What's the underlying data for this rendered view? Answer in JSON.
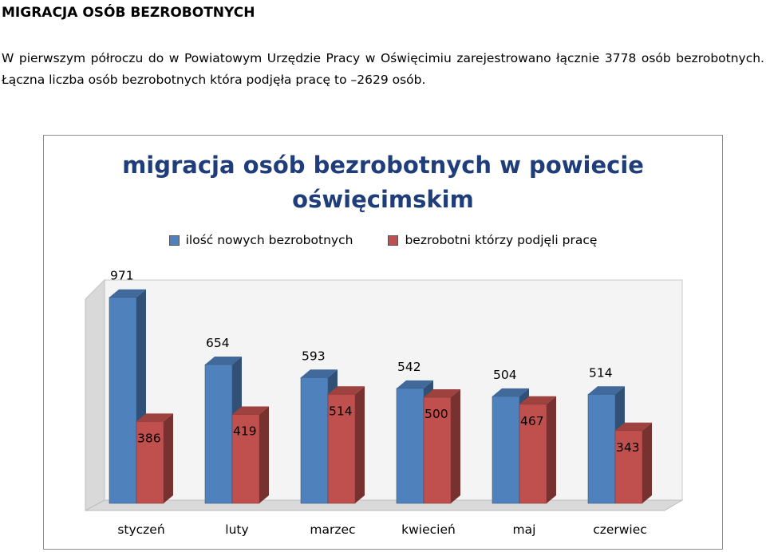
{
  "document": {
    "heading": "MIGRACJA OSÓB BEZROBOTNYCH",
    "paragraph": "W pierwszym półroczu do w Powiatowym Urzędzie Pracy w Oświęcimiu zarejestrowano łącznie 3778 osób bezrobotnych. Łączna liczba osób bezrobotnych która podjęła pracę to –2629 osób."
  },
  "chart_data": {
    "type": "bar",
    "title_line1": "migracja osób bezrobotnych w powiecie",
    "title_line2": "oświęcimskim",
    "categories": [
      "styczeń",
      "luty",
      "marzec",
      "kwiecień",
      "maj",
      "czerwiec"
    ],
    "series": [
      {
        "name": "ilość nowych bezrobotnych",
        "values": [
          971,
          654,
          593,
          542,
          504,
          514
        ],
        "color": "#4f81bd"
      },
      {
        "name": "bezrobotni którzy podjęli pracę",
        "values": [
          386,
          419,
          514,
          500,
          467,
          343
        ],
        "color": "#c0504d"
      }
    ],
    "legend_position": "top",
    "grid": false,
    "ylim": [
      0,
      1000
    ],
    "style": "3d-clustered-column"
  }
}
